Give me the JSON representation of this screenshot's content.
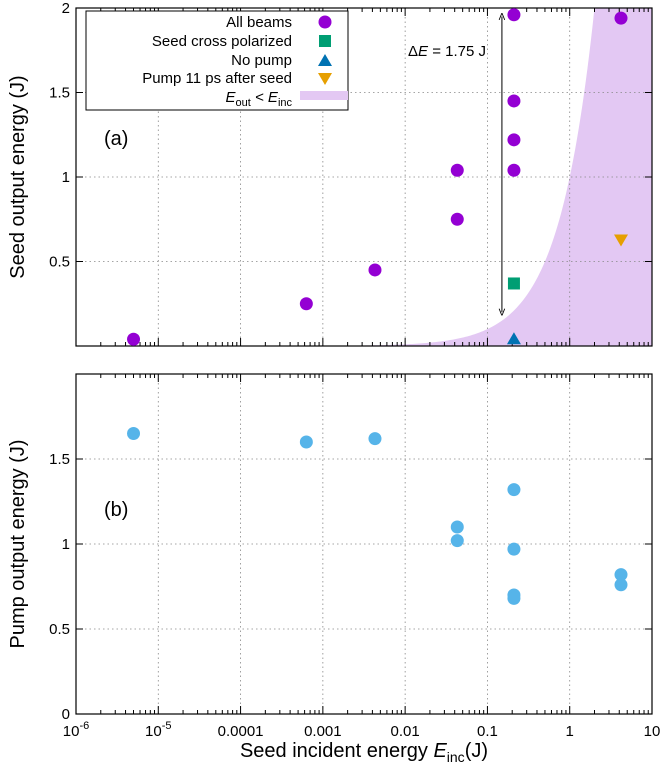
{
  "chart_data": [
    {
      "panel": "a",
      "type": "scatter",
      "panel_label": "(a)",
      "ylabel": "Seed output energy (J)",
      "xscale": "log",
      "xlim": [
        1e-06,
        10
      ],
      "ylim": [
        0,
        2
      ],
      "y_ticks": [
        0.5,
        1,
        1.5,
        2
      ],
      "y_tick_labels": [
        "0.5",
        "1",
        "1.5",
        "2"
      ],
      "grid": true,
      "legend_placement": "top-left",
      "colors": {
        "all_beams": "#9400d3",
        "seed_cross": "#009e73",
        "no_pump": "#0072b2",
        "pump_after": "#e69f00",
        "region": "#e3c8f3"
      },
      "series": [
        {
          "name": "All beams",
          "marker": "circle",
          "color_key": "all_beams",
          "points": [
            [
              5e-06,
              0.04
            ],
            [
              0.00063,
              0.25
            ],
            [
              0.0043,
              0.45
            ],
            [
              0.043,
              0.75
            ],
            [
              0.043,
              1.04
            ],
            [
              0.21,
              1.04
            ],
            [
              0.21,
              1.22
            ],
            [
              0.21,
              1.45
            ],
            [
              0.21,
              1.96
            ],
            [
              4.2,
              1.94
            ]
          ]
        },
        {
          "name": "Seed cross polarized",
          "marker": "square",
          "color_key": "seed_cross",
          "points": [
            [
              0.21,
              0.37
            ]
          ]
        },
        {
          "name": "No pump",
          "marker": "triangle-up",
          "color_key": "no_pump",
          "points": [
            [
              0.21,
              0.04
            ]
          ]
        },
        {
          "name": "Pump 11 ps after seed",
          "marker": "triangle-down",
          "color_key": "pump_after",
          "points": [
            [
              4.2,
              0.63
            ]
          ]
        }
      ],
      "region": {
        "name_main": "E",
        "name_sub1": "out",
        "name_mid": " < E",
        "name_sub2": "inc",
        "relation": "y < x",
        "color_key": "region"
      },
      "annotation": {
        "prefix": "Δ",
        "var": "E",
        "suffix": " = 1.75 J",
        "x": 0.15,
        "y_from": 0.2,
        "y_to": 1.95
      }
    },
    {
      "panel": "b",
      "type": "scatter",
      "panel_label": "(b)",
      "ylabel": "Pump output energy (J)",
      "xlabel_main": "Seed incident energy ",
      "xlabel_var": "E",
      "xlabel_sub": "inc",
      "xlabel_unit": "(J)",
      "xscale": "log",
      "xlim": [
        1e-06,
        10
      ],
      "ylim": [
        0,
        2
      ],
      "y_ticks": [
        0,
        0.5,
        1,
        1.5
      ],
      "y_tick_labels": [
        "0",
        "0.5",
        "1",
        "1.5"
      ],
      "x_ticks": [
        1e-06,
        1e-05,
        0.0001,
        0.001,
        0.01,
        0.1,
        1,
        10
      ],
      "x_tick_labels": [
        [
          "10",
          "-6"
        ],
        [
          "10",
          "-5"
        ],
        [
          "0.0001"
        ],
        [
          "0.001"
        ],
        [
          "0.01"
        ],
        [
          "0.1"
        ],
        [
          "1"
        ],
        [
          "10"
        ]
      ],
      "grid": true,
      "colors": {
        "pump": "#56b4e9"
      },
      "series": [
        {
          "marker": "circle",
          "color_key": "pump",
          "points": [
            [
              5e-06,
              1.65
            ],
            [
              0.00063,
              1.6
            ],
            [
              0.0043,
              1.62
            ],
            [
              0.043,
              1.1
            ],
            [
              0.043,
              1.02
            ],
            [
              0.21,
              1.32
            ],
            [
              0.21,
              0.97
            ],
            [
              0.21,
              0.7
            ],
            [
              0.21,
              0.68
            ],
            [
              4.2,
              0.82
            ],
            [
              4.2,
              0.76
            ]
          ]
        }
      ]
    }
  ]
}
